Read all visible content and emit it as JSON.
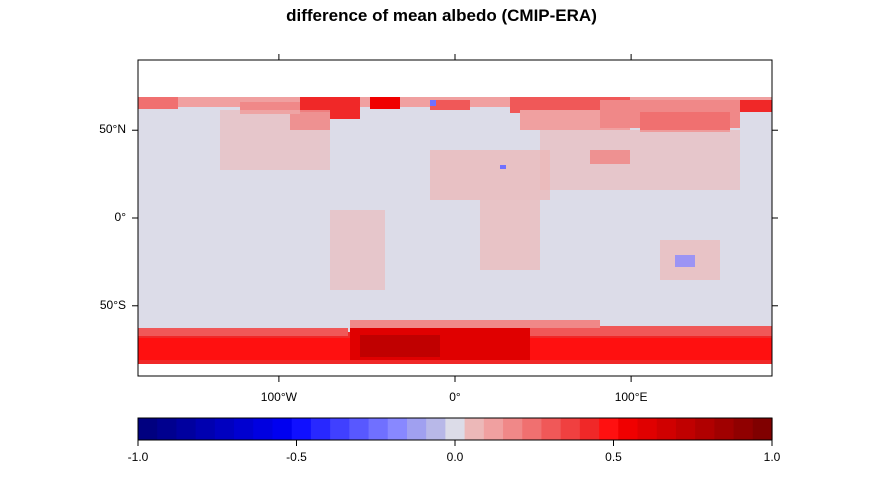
{
  "title": "difference of mean albedo (CMIP-ERA)",
  "map": {
    "x_ticks": [
      {
        "value": -100,
        "label": "100°W"
      },
      {
        "value": 0,
        "label": "0°"
      },
      {
        "value": 100,
        "label": "100°E"
      }
    ],
    "y_ticks": [
      {
        "value": 50,
        "label": "50°N"
      },
      {
        "value": 0,
        "label": "0°"
      },
      {
        "value": -50,
        "label": "50°S"
      }
    ],
    "lon_range": [
      -180,
      180
    ],
    "lat_range": [
      -90,
      90
    ],
    "data_lat_range": [
      -82,
      70
    ],
    "background_color": "#dcdce8"
  },
  "colorbar": {
    "range": [
      -1.0,
      1.0
    ],
    "ticks": [
      {
        "value": -1.0,
        "label": "-1.0"
      },
      {
        "value": -0.5,
        "label": "-0.5"
      },
      {
        "value": 0.0,
        "label": "0.0"
      },
      {
        "value": 0.5,
        "label": "0.5"
      },
      {
        "value": 1.0,
        "label": "1.0"
      }
    ],
    "colors": [
      "#000080",
      "#00008f",
      "#00009f",
      "#0000b0",
      "#0000c0",
      "#0000d0",
      "#0000e0",
      "#0000f0",
      "#1010ff",
      "#2828ff",
      "#4040ff",
      "#5858ff",
      "#7070ff",
      "#8888ff",
      "#a0a0f0",
      "#b8b8e8",
      "#dcdce8",
      "#ecb8b8",
      "#f0a0a0",
      "#f08888",
      "#f07070",
      "#f05858",
      "#f04040",
      "#f02828",
      "#ff1010",
      "#f00000",
      "#e00000",
      "#d00000",
      "#c00000",
      "#b00000",
      "#a00000",
      "#900000",
      "#800000"
    ]
  }
}
